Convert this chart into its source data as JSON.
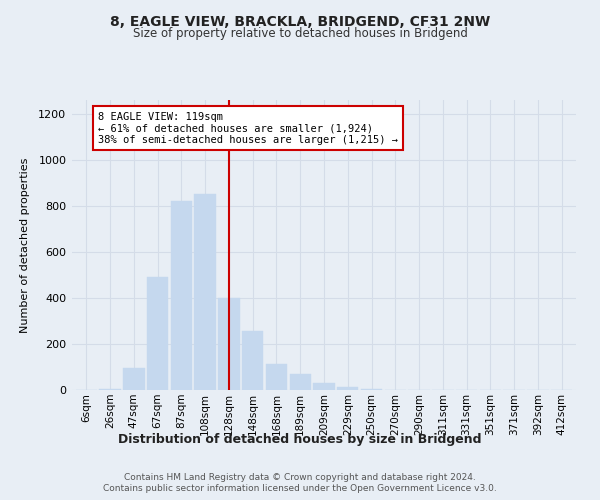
{
  "title": "8, EAGLE VIEW, BRACKLA, BRIDGEND, CF31 2NW",
  "subtitle": "Size of property relative to detached houses in Bridgend",
  "bar_labels": [
    "6sqm",
    "26sqm",
    "47sqm",
    "67sqm",
    "87sqm",
    "108sqm",
    "128sqm",
    "148sqm",
    "168sqm",
    "189sqm",
    "209sqm",
    "229sqm",
    "250sqm",
    "270sqm",
    "290sqm",
    "311sqm",
    "331sqm",
    "351sqm",
    "371sqm",
    "392sqm",
    "412sqm"
  ],
  "bar_values": [
    2,
    5,
    95,
    490,
    820,
    850,
    400,
    255,
    115,
    70,
    32,
    15,
    5,
    2,
    1,
    1,
    0,
    0,
    0,
    0,
    0
  ],
  "bar_color": "#c5d8ee",
  "bar_edgecolor": "#c5d8ee",
  "vline_x": 6.0,
  "vline_color": "#cc0000",
  "annotation_text": "8 EAGLE VIEW: 119sqm\n← 61% of detached houses are smaller (1,924)\n38% of semi-detached houses are larger (1,215) →",
  "annotation_box_edgecolor": "#cc0000",
  "annotation_box_facecolor": "#ffffff",
  "ylabel": "Number of detached properties",
  "xlabel": "Distribution of detached houses by size in Bridgend",
  "ylim": [
    0,
    1260
  ],
  "yticks": [
    0,
    200,
    400,
    600,
    800,
    1000,
    1200
  ],
  "grid_color": "#d4dce8",
  "bg_color": "#e8eef5",
  "footer_line1": "Contains HM Land Registry data © Crown copyright and database right 2024.",
  "footer_line2": "Contains public sector information licensed under the Open Government Licence v3.0."
}
